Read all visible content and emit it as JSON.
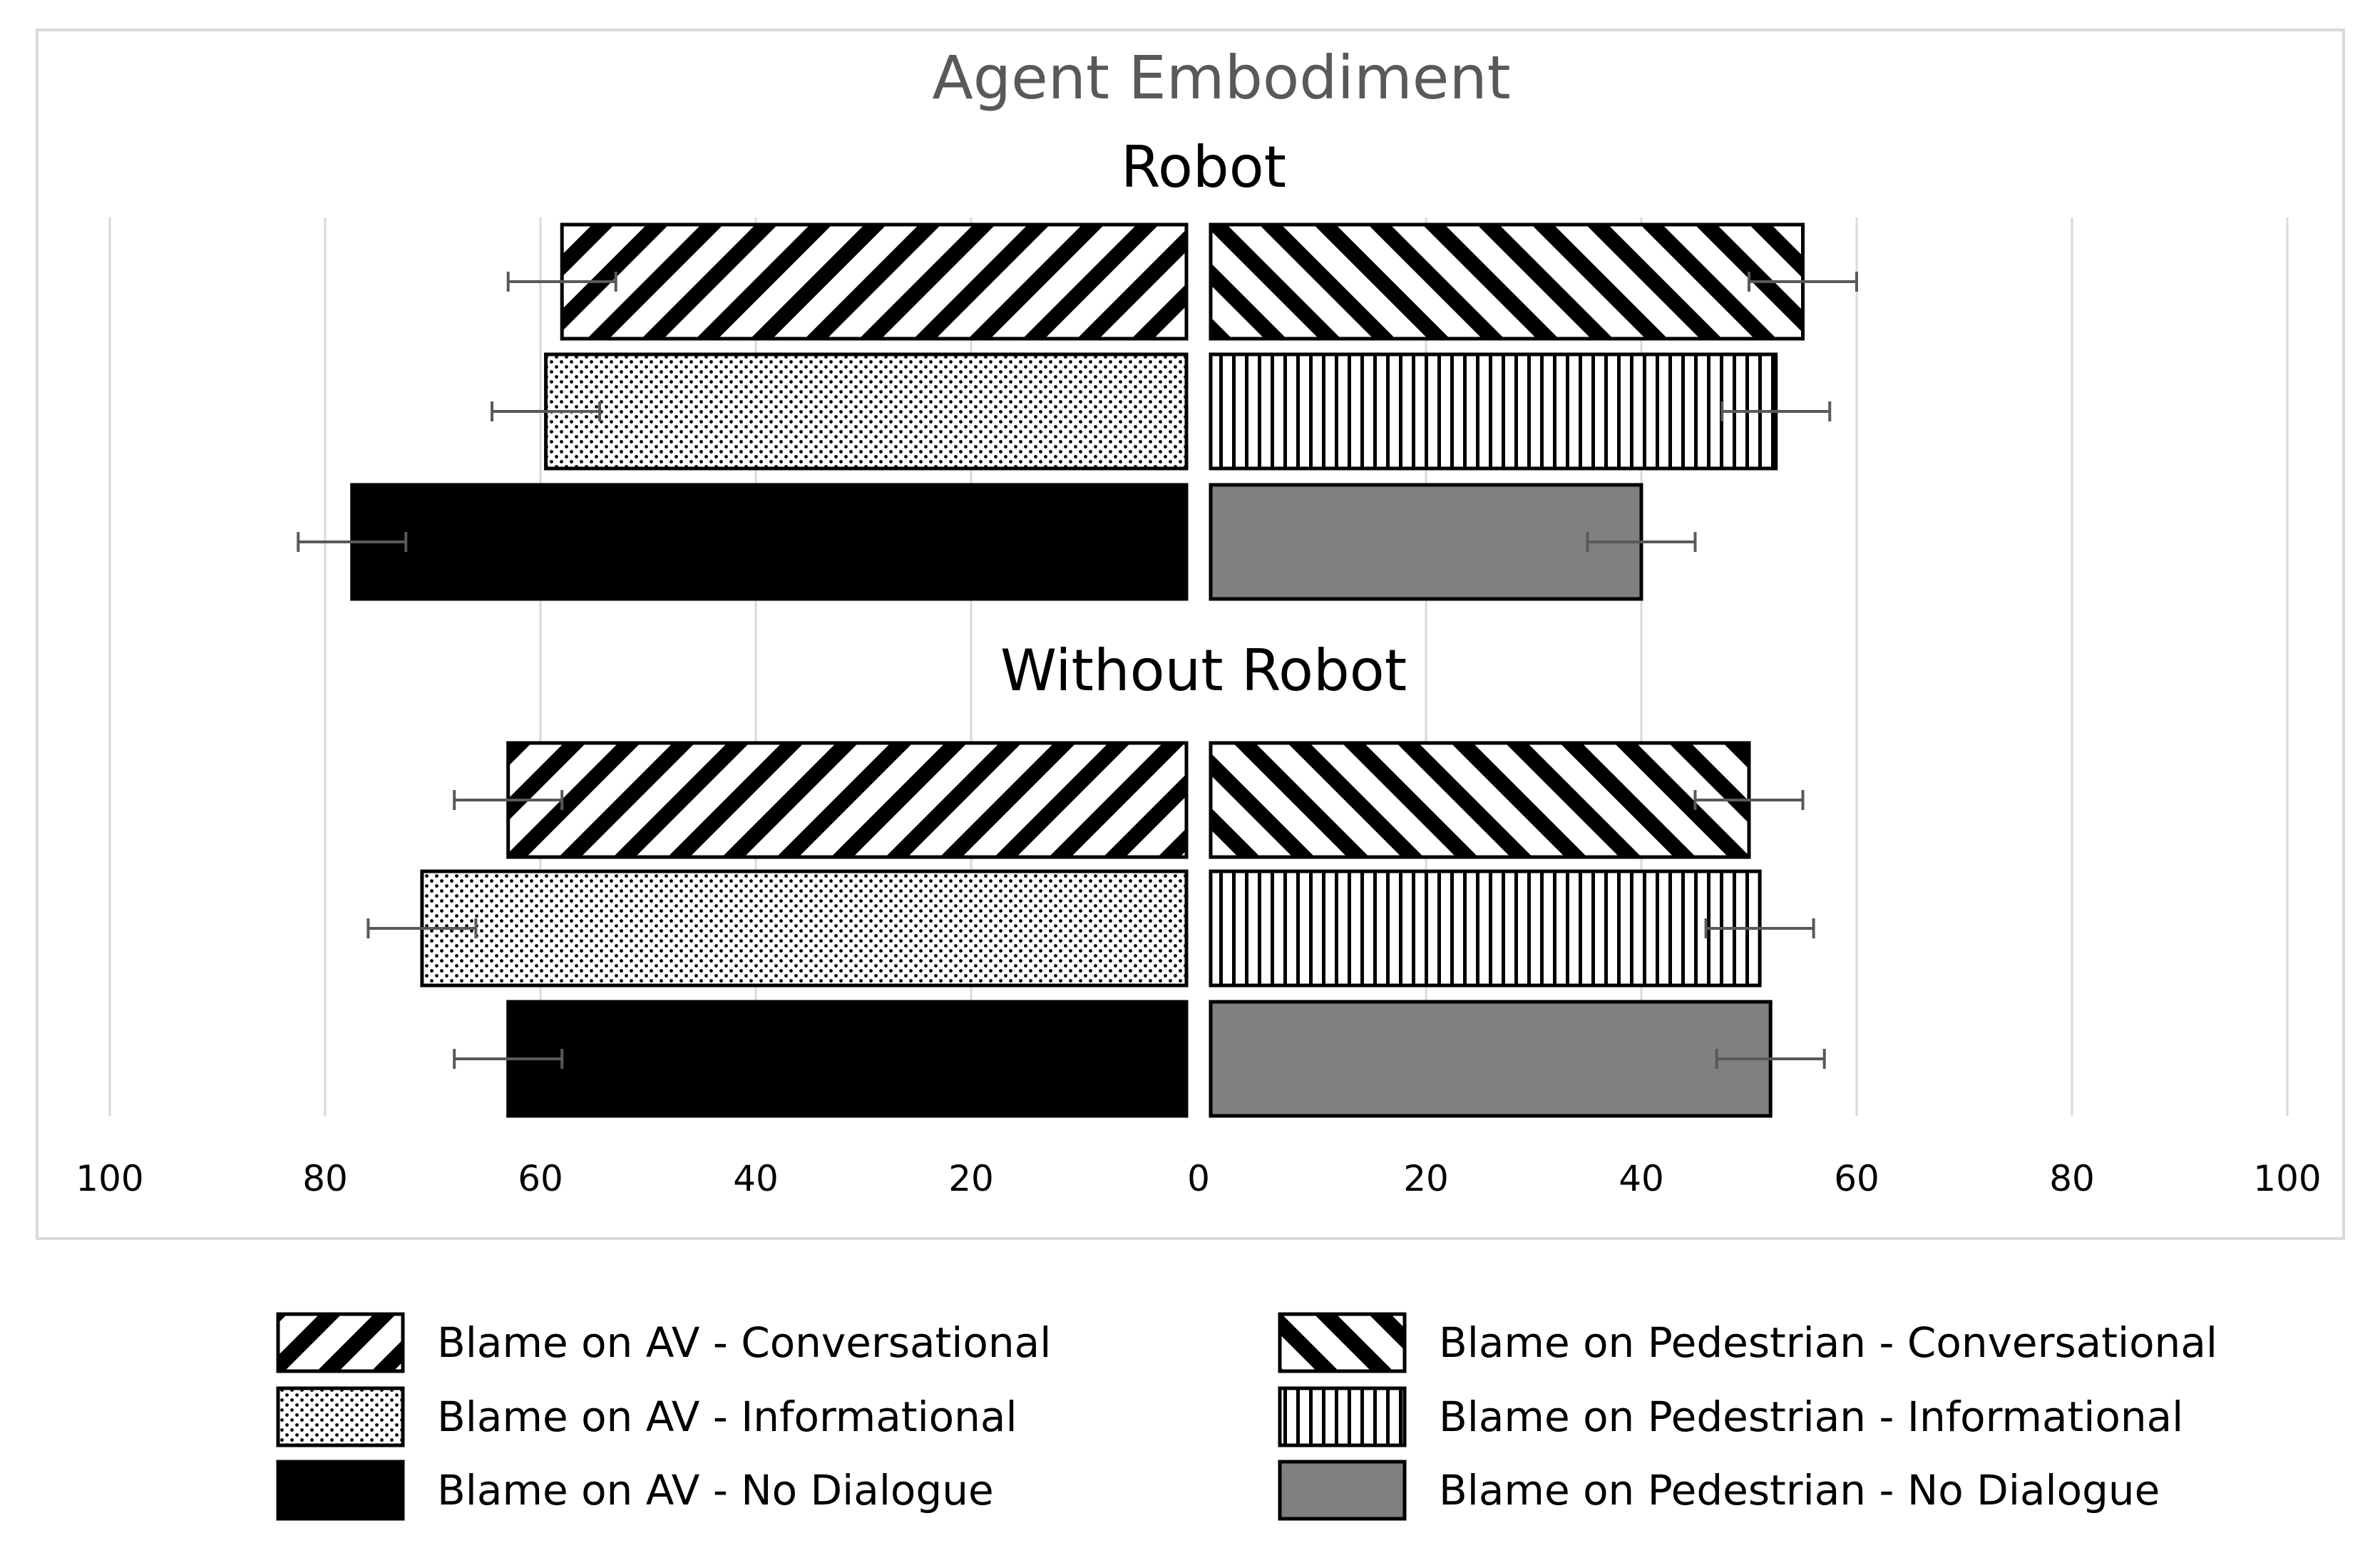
{
  "chart_data": {
    "type": "bar",
    "orientation": "horizontal-diverging",
    "title": "Agent Embodiment",
    "xlim": [
      -100,
      100
    ],
    "tick_values": [
      -100,
      -80,
      -60,
      -40,
      -20,
      0,
      20,
      40,
      60,
      80,
      100
    ],
    "tick_labels": [
      "100",
      "80",
      "60",
      "40",
      "20",
      "0",
      "20",
      "40",
      "60",
      "80",
      "100"
    ],
    "grid": true,
    "legend_position": "bottom",
    "groups": [
      {
        "label": "Robot",
        "rows": [
          {
            "left": {
              "series": "av_conv",
              "value": 58,
              "err": 5
            },
            "right": {
              "series": "ped_conv",
              "value": 55,
              "err": 5
            }
          },
          {
            "left": {
              "series": "av_info",
              "value": 59.5,
              "err": 5
            },
            "right": {
              "series": "ped_info",
              "value": 52.5,
              "err": 5
            }
          },
          {
            "left": {
              "series": "av_nod",
              "value": 77.5,
              "err": 5
            },
            "right": {
              "series": "ped_nod",
              "value": 40,
              "err": 5
            }
          }
        ]
      },
      {
        "label": "Without Robot",
        "rows": [
          {
            "left": {
              "series": "av_conv",
              "value": 63,
              "err": 5
            },
            "right": {
              "series": "ped_conv",
              "value": 50,
              "err": 5
            }
          },
          {
            "left": {
              "series": "av_info",
              "value": 71,
              "err": 5
            },
            "right": {
              "series": "ped_info",
              "value": 51,
              "err": 5
            }
          },
          {
            "left": {
              "series": "av_nod",
              "value": 63,
              "err": 5
            },
            "right": {
              "series": "ped_nod",
              "value": 52,
              "err": 5
            }
          }
        ]
      }
    ],
    "series": [
      {
        "id": "av_conv",
        "name": "Blame on AV - Conversational",
        "pattern": "diagonal-back",
        "color": "#000000"
      },
      {
        "id": "ped_conv",
        "name": "Blame on Pedestrian - Conversational",
        "pattern": "diagonal-forward",
        "color": "#000000"
      },
      {
        "id": "av_info",
        "name": "Blame on AV - Informational",
        "pattern": "dots",
        "color": "#000000"
      },
      {
        "id": "ped_info",
        "name": "Blame on Pedestrian - Informational",
        "pattern": "vertical-lines",
        "color": "#000000"
      },
      {
        "id": "av_nod",
        "name": "Blame on AV - No Dialogue",
        "pattern": "solid",
        "color": "#000000"
      },
      {
        "id": "ped_nod",
        "name": "Blame on Pedestrian - No Dialogue",
        "pattern": "solid",
        "color": "#808080"
      }
    ],
    "legend_order": [
      "av_conv",
      "ped_conv",
      "av_info",
      "ped_info",
      "av_nod",
      "ped_nod"
    ]
  }
}
